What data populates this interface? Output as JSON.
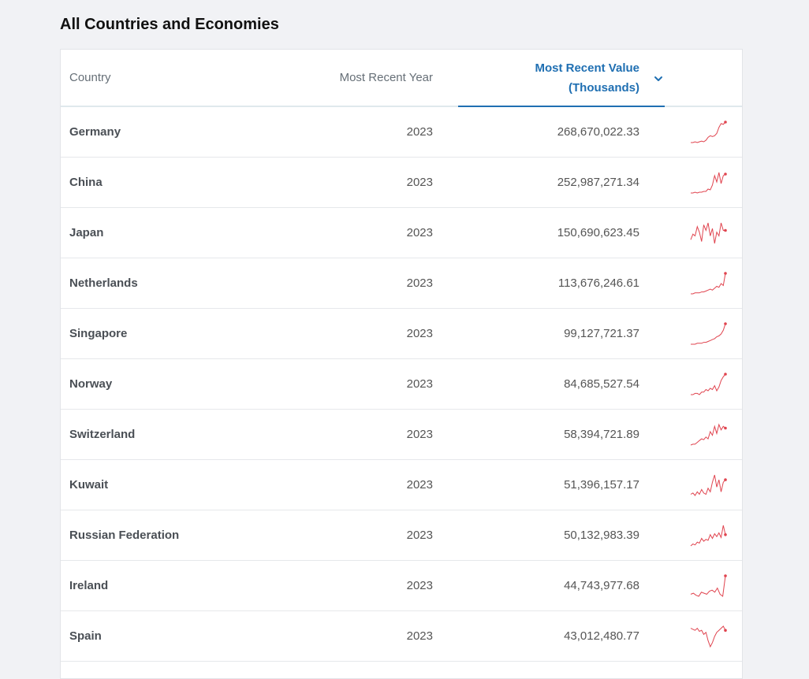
{
  "page_title": "All Countries and Economies",
  "columns": {
    "country": "Country",
    "year": "Most Recent Year",
    "value_line1": "Most Recent Value",
    "value_line2": "(Thousands)"
  },
  "sort_icon": "chevron-down-icon",
  "accent_color": "#1f6fb2",
  "sparkline_color": "#e0444f",
  "rows": [
    {
      "country": "Germany",
      "year": "2023",
      "value": "268,670,022.33",
      "trend": [
        5,
        5,
        6,
        5,
        6,
        7,
        6,
        8,
        12,
        14,
        13,
        14,
        17,
        25,
        30,
        29,
        32
      ]
    },
    {
      "country": "China",
      "year": "2023",
      "value": "252,987,271.34",
      "trend": [
        4,
        4,
        5,
        4,
        5,
        5,
        6,
        6,
        9,
        8,
        14,
        26,
        18,
        30,
        16,
        26,
        28
      ]
    },
    {
      "country": "Japan",
      "year": "2023",
      "value": "150,690,623.45",
      "trend": [
        10,
        16,
        14,
        24,
        18,
        8,
        26,
        20,
        28,
        14,
        22,
        6,
        18,
        14,
        28,
        20,
        20
      ]
    },
    {
      "country": "Netherlands",
      "year": "2023",
      "value": "113,676,246.61",
      "trend": [
        3,
        3,
        4,
        4,
        4,
        5,
        5,
        6,
        7,
        8,
        7,
        9,
        11,
        10,
        14,
        12,
        25
      ]
    },
    {
      "country": "Singapore",
      "year": "2023",
      "value": "99,127,721.37",
      "trend": [
        4,
        4,
        4,
        5,
        5,
        5,
        6,
        6,
        7,
        8,
        9,
        10,
        12,
        13,
        15,
        19,
        26
      ]
    },
    {
      "country": "Norway",
      "year": "2023",
      "value": "84,685,527.54",
      "trend": [
        6,
        6,
        7,
        7,
        6,
        8,
        8,
        10,
        9,
        11,
        10,
        13,
        9,
        12,
        17,
        20,
        22
      ]
    },
    {
      "country": "Switzerland",
      "year": "2023",
      "value": "58,394,721.89",
      "trend": [
        5,
        6,
        6,
        8,
        10,
        12,
        11,
        14,
        12,
        20,
        16,
        26,
        18,
        28,
        22,
        26,
        24
      ]
    },
    {
      "country": "Kuwait",
      "year": "2023",
      "value": "51,396,157.17",
      "trend": [
        10,
        11,
        9,
        12,
        10,
        14,
        11,
        10,
        15,
        12,
        20,
        26,
        16,
        22,
        12,
        20,
        22
      ]
    },
    {
      "country": "Russian Federation",
      "year": "2023",
      "value": "50,132,983.39",
      "trend": [
        6,
        8,
        7,
        10,
        9,
        14,
        11,
        13,
        12,
        18,
        14,
        19,
        16,
        20,
        15,
        28,
        18
      ]
    },
    {
      "country": "Ireland",
      "year": "2023",
      "value": "44,743,977.68",
      "trend": [
        12,
        13,
        11,
        10,
        14,
        13,
        12,
        15,
        16,
        14,
        18,
        12,
        10,
        30
      ]
    },
    {
      "country": "Spain",
      "year": "2023",
      "value": "43,012,480.77",
      "trend": [
        22,
        21,
        20,
        22,
        19,
        20,
        16,
        18,
        10,
        4,
        8,
        14,
        18,
        20,
        22,
        24,
        20
      ]
    }
  ]
}
